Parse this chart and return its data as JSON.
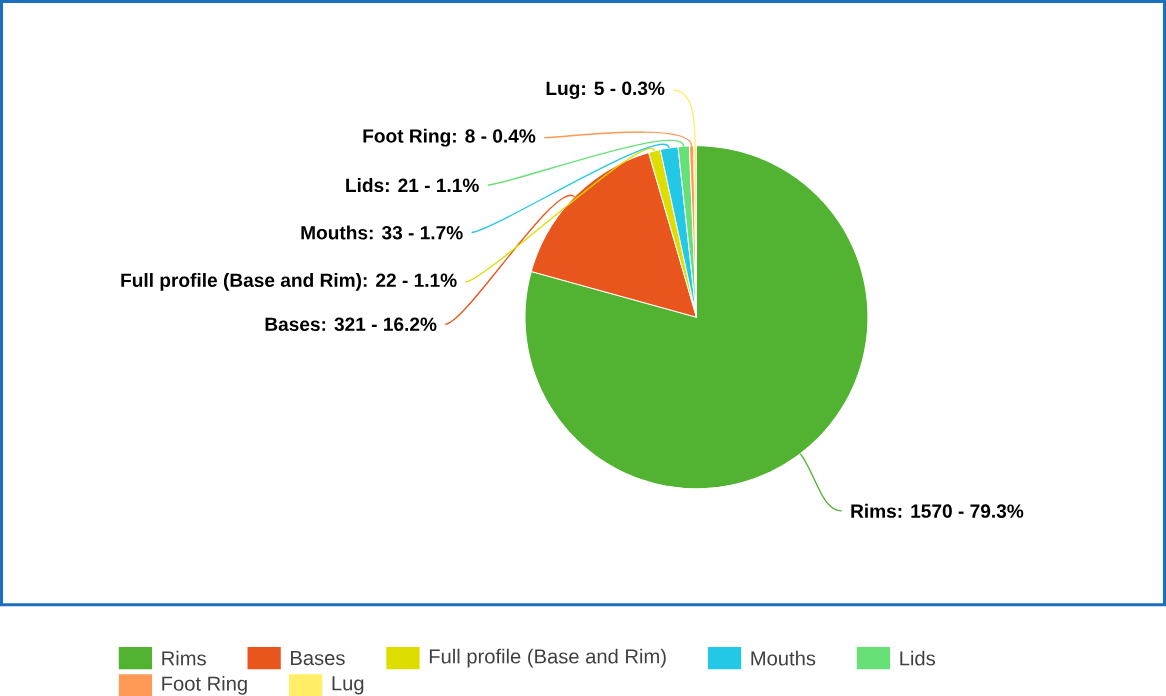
{
  "chart_data": {
    "type": "pie",
    "categories": [
      "Rims",
      "Bases",
      "Full profile (Base and Rim)",
      "Mouths",
      "Lids",
      "Foot Ring",
      "Lug"
    ],
    "values": [
      1570,
      321,
      22,
      33,
      21,
      8,
      5
    ],
    "colors": [
      "#52b332",
      "#e9561d",
      "#dddd00",
      "#22c8e5",
      "#66e077",
      "#ff9955",
      "#ffee66"
    ],
    "value_labels": [
      "Rims: 1570 - 79.3%",
      "Bases: 321 - 16.2%",
      "Full profile (Base and Rim): 22 - 1.1%",
      "Mouths: 33 - 1.7%",
      "Lids: 21 - 1.1%",
      "Foot Ring: 8 - 0.4%",
      "Lug: 5 - 0.3%"
    ],
    "legend": "bottom"
  }
}
